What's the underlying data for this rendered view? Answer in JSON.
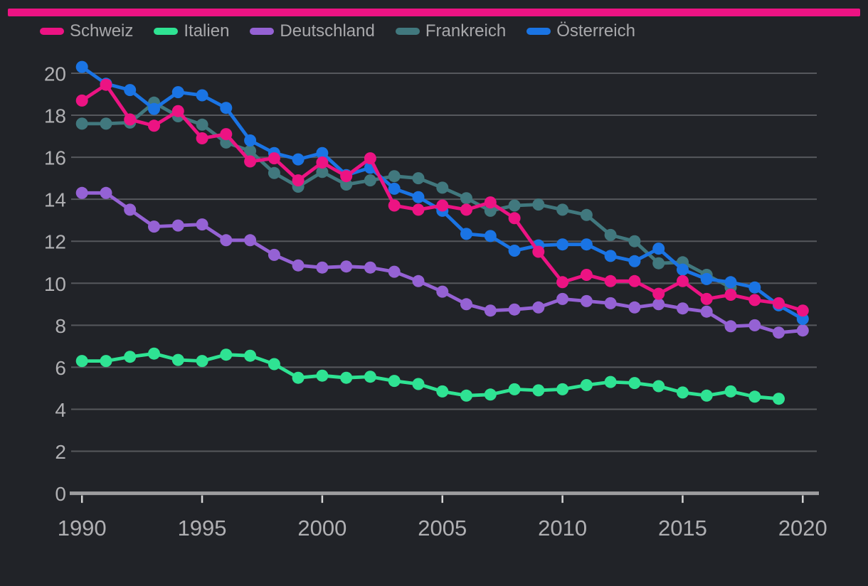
{
  "page": {
    "background_color": "#212328",
    "accent_bar_color": "#ec1383"
  },
  "chart_data": {
    "type": "line",
    "title": "",
    "xlabel": "",
    "ylabel": "",
    "x": [
      1990,
      1991,
      1992,
      1993,
      1994,
      1995,
      1996,
      1997,
      1998,
      1999,
      2000,
      2001,
      2002,
      2003,
      2004,
      2005,
      2006,
      2007,
      2008,
      2009,
      2010,
      2011,
      2012,
      2013,
      2014,
      2015,
      2016,
      2017,
      2018,
      2019,
      2020
    ],
    "series": [
      {
        "name": "Schweiz",
        "color": "#ec1383",
        "values": [
          18.7,
          19.45,
          17.8,
          17.5,
          18.2,
          16.9,
          17.1,
          15.8,
          15.95,
          14.9,
          15.75,
          15.1,
          15.95,
          13.7,
          13.5,
          13.7,
          13.5,
          13.85,
          13.1,
          11.5,
          10.05,
          10.4,
          10.1,
          10.1,
          9.5,
          10.1,
          9.25,
          9.45,
          9.2,
          9.05,
          8.7
        ]
      },
      {
        "name": "Italien",
        "color": "#2fe393",
        "values": [
          6.3,
          6.3,
          6.5,
          6.65,
          6.35,
          6.3,
          6.6,
          6.55,
          6.15,
          5.5,
          5.6,
          5.5,
          5.55,
          5.35,
          5.2,
          4.85,
          4.65,
          4.7,
          4.95,
          4.9,
          4.95,
          5.15,
          5.3,
          5.25,
          5.1,
          4.8,
          4.65,
          4.85,
          4.6,
          4.5,
          null
        ]
      },
      {
        "name": "Deutschland",
        "color": "#9562d4",
        "values": [
          14.3,
          14.3,
          13.5,
          12.7,
          12.75,
          12.8,
          12.05,
          12.05,
          11.35,
          10.85,
          10.75,
          10.8,
          10.75,
          10.55,
          10.1,
          9.6,
          9.0,
          8.7,
          8.75,
          8.85,
          9.25,
          9.15,
          9.05,
          8.85,
          9.0,
          8.8,
          8.65,
          7.95,
          8.0,
          7.65,
          7.75
        ]
      },
      {
        "name": "Frankreich",
        "color": "#41787e",
        "values": [
          17.6,
          17.6,
          17.65,
          18.6,
          17.95,
          17.55,
          16.7,
          16.3,
          15.25,
          14.6,
          15.3,
          14.7,
          14.9,
          15.1,
          15.0,
          14.55,
          14.05,
          13.45,
          13.7,
          13.75,
          13.5,
          13.25,
          12.3,
          12.0,
          10.95,
          11.0,
          10.4,
          9.8,
          null,
          null,
          null
        ]
      },
      {
        "name": "Österreich",
        "color": "#1a74e4",
        "values": [
          20.3,
          19.5,
          19.2,
          18.3,
          19.1,
          18.95,
          18.35,
          16.8,
          16.2,
          15.9,
          16.2,
          15.15,
          15.5,
          14.5,
          14.1,
          13.45,
          12.35,
          12.25,
          11.55,
          11.8,
          11.85,
          11.85,
          11.3,
          11.05,
          11.65,
          10.65,
          10.2,
          10.05,
          9.8,
          8.95,
          8.3
        ]
      }
    ],
    "xticks": [
      "1990",
      "1995",
      "2000",
      "2005",
      "2010",
      "2015",
      "2020"
    ],
    "yticks": [
      "0",
      "2",
      "4",
      "6",
      "8",
      "10",
      "12",
      "14",
      "16",
      "18",
      "20"
    ],
    "ylim": [
      0,
      20.5
    ],
    "xlim": [
      1990,
      2020
    ],
    "grid": true,
    "legend_position": "top-left"
  },
  "axis_style": {
    "grid_color": "#56585d",
    "axis_line_color": "#9d9d9f",
    "tick_color": "#d6d6d6",
    "label_color": "#b0b0b3",
    "legend_label_color": "#a8a8ab"
  }
}
